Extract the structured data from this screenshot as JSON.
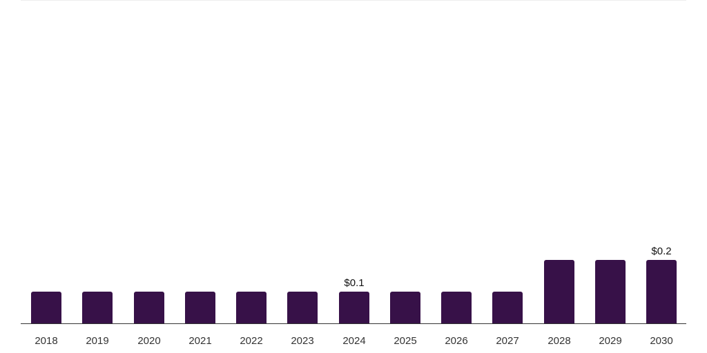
{
  "chart_data": {
    "type": "bar",
    "title": "",
    "xlabel": "",
    "ylabel": "",
    "categories": [
      "2018",
      "2019",
      "2020",
      "2021",
      "2022",
      "2023",
      "2024",
      "2025",
      "2026",
      "2027",
      "2028",
      "2029",
      "2030"
    ],
    "values": [
      0.1,
      0.1,
      0.1,
      0.1,
      0.1,
      0.1,
      0.1,
      0.1,
      0.1,
      0.1,
      0.2,
      0.2,
      0.2
    ],
    "data_labels": [
      {
        "category": "2024",
        "text": "$0.1"
      },
      {
        "category": "2030",
        "text": "$0.2"
      }
    ],
    "bar_color": "#371148",
    "grid": false,
    "legend": null,
    "ylim": [
      0,
      1
    ]
  }
}
